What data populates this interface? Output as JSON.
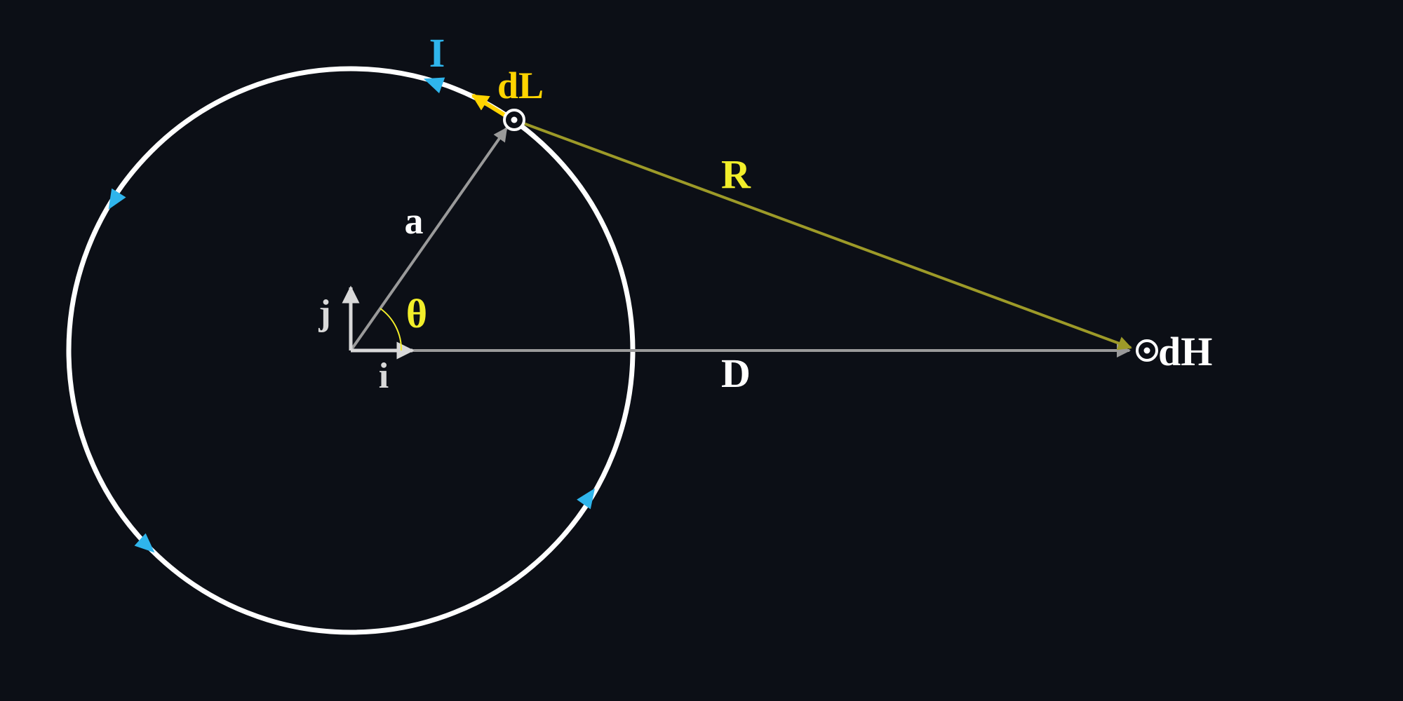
{
  "labels": {
    "current": "I",
    "element": "dL",
    "radius": "a",
    "distance_vector": "R",
    "angle": "θ",
    "unit_x": "i",
    "unit_y": "j",
    "axis_distance": "D",
    "field": "dH"
  },
  "colors": {
    "background": "#0c0f16",
    "loop": "#ffffff",
    "current_arrows": "#2fb5ec",
    "element": "#ffd400",
    "distance_vector": "#9d9a28",
    "distance_label": "#f2ee2a",
    "radius_vector": "#9a9a9a",
    "unit_vectors": "#d9d9d9",
    "angle_label": "#f2ee2a",
    "text": "#ffffff"
  },
  "icons": {
    "element_marker": "dot-in-circle-icon",
    "field_marker": "dot-in-circle-icon"
  }
}
